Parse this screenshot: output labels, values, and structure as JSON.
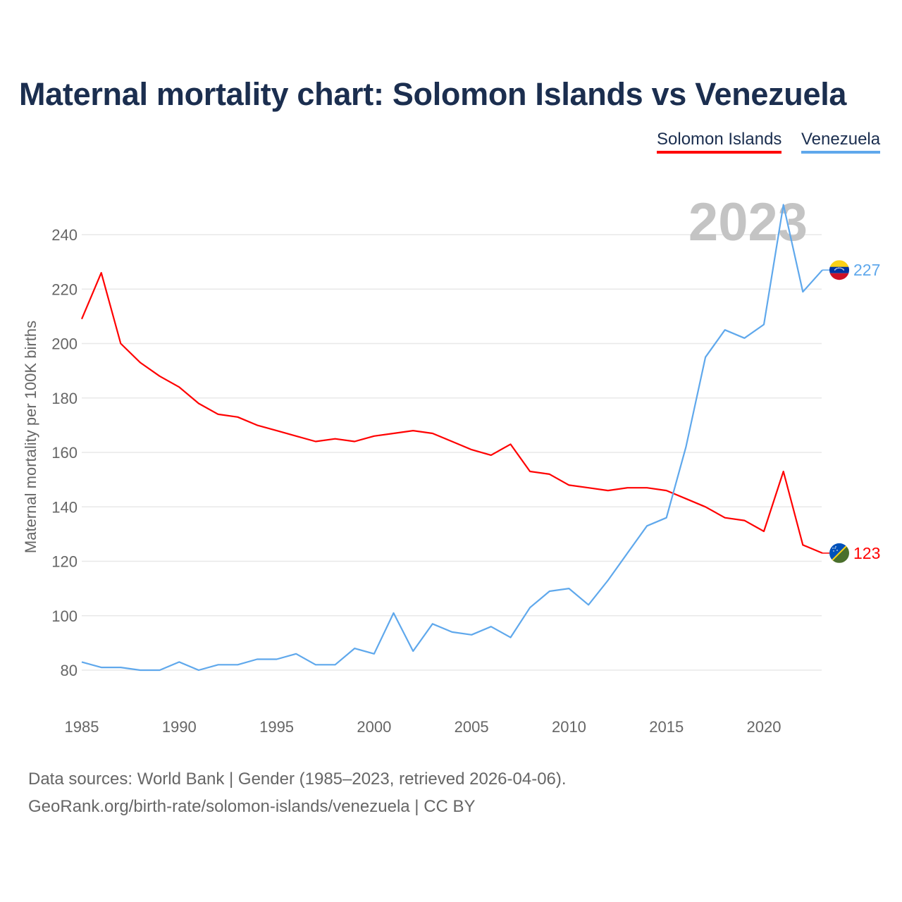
{
  "chart_data": {
    "type": "line",
    "title": "Maternal mortality chart: Solomon Islands vs Venezuela",
    "xlabel": "",
    "ylabel": "Maternal mortality per 100K births",
    "xlim": [
      1985,
      2023
    ],
    "ylim": [
      80,
      240
    ],
    "yticks": [
      80,
      100,
      120,
      140,
      160,
      180,
      200,
      220,
      240
    ],
    "xticks": [
      1985,
      1990,
      1995,
      2000,
      2005,
      2010,
      2015,
      2020
    ],
    "grid": true,
    "legend_placement": "top-right",
    "year_label": "2023",
    "x": [
      1985,
      1986,
      1987,
      1988,
      1989,
      1990,
      1991,
      1992,
      1993,
      1994,
      1995,
      1996,
      1997,
      1998,
      1999,
      2000,
      2001,
      2002,
      2003,
      2004,
      2005,
      2006,
      2007,
      2008,
      2009,
      2010,
      2011,
      2012,
      2013,
      2014,
      2015,
      2016,
      2017,
      2018,
      2019,
      2020,
      2021,
      2022,
      2023
    ],
    "series": [
      {
        "name": "Solomon Islands",
        "color": "#ff0000",
        "end_label": "123",
        "values": [
          209,
          226,
          200,
          193,
          188,
          184,
          178,
          174,
          173,
          170,
          168,
          166,
          164,
          165,
          164,
          166,
          167,
          168,
          167,
          164,
          161,
          159,
          163,
          153,
          152,
          148,
          147,
          146,
          147,
          147,
          146,
          143,
          140,
          136,
          135,
          131,
          153,
          126,
          123
        ]
      },
      {
        "name": "Venezuela",
        "color": "#5fa8ec",
        "end_label": "227",
        "values": [
          83,
          81,
          81,
          80,
          80,
          83,
          80,
          82,
          82,
          84,
          84,
          86,
          82,
          82,
          88,
          86,
          101,
          87,
          97,
          94,
          93,
          96,
          92,
          103,
          109,
          110,
          104,
          113,
          123,
          133,
          136,
          162,
          195,
          205,
          202,
          207,
          251,
          219,
          227
        ]
      }
    ]
  },
  "footer": {
    "line1": "Data sources: World Bank | Gender (1985–2023, retrieved 2026-04-06).",
    "line2": "GeoRank.org/birth-rate/solomon-islands/venezuela | CC BY"
  }
}
